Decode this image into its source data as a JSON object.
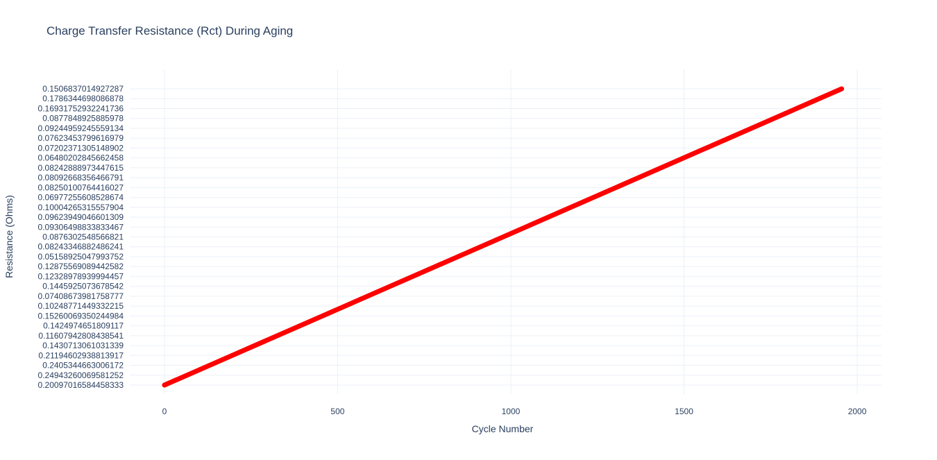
{
  "chart_data": {
    "type": "line",
    "title": "Charge Transfer Resistance (Rct) During Aging",
    "xlabel": "Cycle Number",
    "ylabel": "Resistance (Ohms)",
    "x_ticks": [
      0,
      500,
      1000,
      1500,
      2000
    ],
    "xlim": [
      -100,
      2070
    ],
    "y_axis_type": "category",
    "y_categories": [
      "0.20097016584458333",
      "0.24943260069581252",
      "0.2405344663006172",
      "0.21194602938813917",
      "0.1430713061031339",
      "0.11607942808438541",
      "0.1424974651809117",
      "0.15260069350244984",
      "0.10248771449332215",
      "0.07408673981758777",
      "0.1445925073678542",
      "0.12328978939994457",
      "0.12875569089442582",
      "0.05158925047993752",
      "0.08243346882486241",
      "0.0876302548566821",
      "0.09306498833833467",
      "0.09623949046601309",
      "0.10004265315557904",
      "0.06977255608528674",
      "0.08250100764416027",
      "0.08092668356466791",
      "0.08242888973447615",
      "0.06480202845662458",
      "0.07202371305148902",
      "0.07623453799616979",
      "0.09244959245559134",
      "0.0877848925885978",
      "0.16931752932241736",
      "0.1786344698086878",
      "0.1506837014927287"
    ],
    "series": [
      {
        "color": "#ff0000",
        "x": [
          0,
          1955
        ],
        "y": [
          "0.20097016584458333",
          "0.1506837014927287"
        ]
      }
    ],
    "grid": true,
    "legend": "none"
  }
}
